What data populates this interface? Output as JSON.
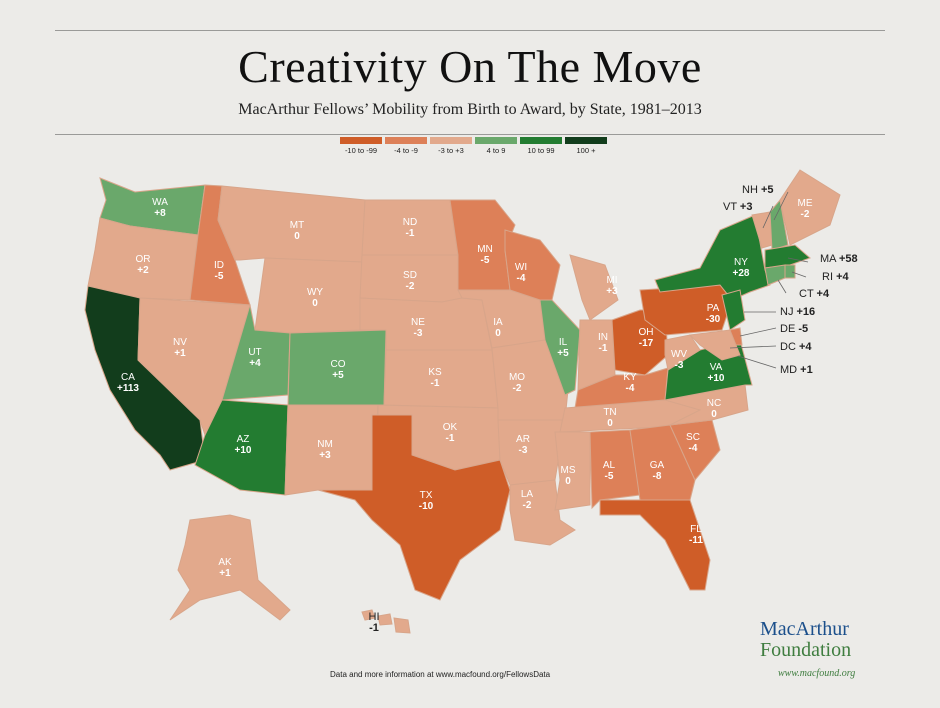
{
  "title": "Creativity On The Move",
  "subtitle": "MacArthur Fellows’ Mobility from Birth to Award, by State, 1981–2013",
  "legend": [
    {
      "label": "-10 to -99",
      "color": "#cf5d28"
    },
    {
      "label": "-4 to -9",
      "color": "#dd8058"
    },
    {
      "label": "-3 to +3",
      "color": "#e2a98c"
    },
    {
      "label": "4 to 9",
      "color": "#6aa86b"
    },
    {
      "label": "10 to 99",
      "color": "#237c31"
    },
    {
      "label": "100 +",
      "color": "#123d1c"
    }
  ],
  "colors": {
    "border": "#d8a58a",
    "background": "#ecebe8"
  },
  "states": [
    {
      "abbr": "WA",
      "value": "+8",
      "bin": 3
    },
    {
      "abbr": "OR",
      "value": "+2",
      "bin": 2
    },
    {
      "abbr": "CA",
      "value": "+113",
      "bin": 5
    },
    {
      "abbr": "ID",
      "value": "-5",
      "bin": 1
    },
    {
      "abbr": "NV",
      "value": "+1",
      "bin": 2
    },
    {
      "abbr": "MT",
      "value": "0",
      "bin": 2
    },
    {
      "abbr": "WY",
      "value": "0",
      "bin": 2
    },
    {
      "abbr": "UT",
      "value": "+4",
      "bin": 3
    },
    {
      "abbr": "AZ",
      "value": "+10",
      "bin": 4
    },
    {
      "abbr": "CO",
      "value": "+5",
      "bin": 3
    },
    {
      "abbr": "NM",
      "value": "+3",
      "bin": 2
    },
    {
      "abbr": "ND",
      "value": "-1",
      "bin": 2
    },
    {
      "abbr": "SD",
      "value": "-2",
      "bin": 2
    },
    {
      "abbr": "NE",
      "value": "-3",
      "bin": 2
    },
    {
      "abbr": "KS",
      "value": "-1",
      "bin": 2
    },
    {
      "abbr": "OK",
      "value": "-1",
      "bin": 2
    },
    {
      "abbr": "TX",
      "value": "-10",
      "bin": 0
    },
    {
      "abbr": "MN",
      "value": "-5",
      "bin": 1
    },
    {
      "abbr": "IA",
      "value": "0",
      "bin": 2
    },
    {
      "abbr": "MO",
      "value": "-2",
      "bin": 2
    },
    {
      "abbr": "AR",
      "value": "-3",
      "bin": 2
    },
    {
      "abbr": "LA",
      "value": "-2",
      "bin": 2
    },
    {
      "abbr": "WI",
      "value": "-4",
      "bin": 1
    },
    {
      "abbr": "IL",
      "value": "+5",
      "bin": 3
    },
    {
      "abbr": "MI",
      "value": "+3",
      "bin": 2
    },
    {
      "abbr": "IN",
      "value": "-1",
      "bin": 2
    },
    {
      "abbr": "OH",
      "value": "-17",
      "bin": 0
    },
    {
      "abbr": "KY",
      "value": "-4",
      "bin": 1
    },
    {
      "abbr": "TN",
      "value": "0",
      "bin": 2
    },
    {
      "abbr": "MS",
      "value": "0",
      "bin": 2
    },
    {
      "abbr": "AL",
      "value": "-5",
      "bin": 1
    },
    {
      "abbr": "GA",
      "value": "-8",
      "bin": 1
    },
    {
      "abbr": "FL",
      "value": "-11",
      "bin": 0
    },
    {
      "abbr": "SC",
      "value": "-4",
      "bin": 1
    },
    {
      "abbr": "NC",
      "value": "0",
      "bin": 2
    },
    {
      "abbr": "VA",
      "value": "+10",
      "bin": 4
    },
    {
      "abbr": "WV",
      "value": "-3",
      "bin": 2
    },
    {
      "abbr": "PA",
      "value": "-30",
      "bin": 0
    },
    {
      "abbr": "NY",
      "value": "+28",
      "bin": 4
    },
    {
      "abbr": "AK",
      "value": "+1",
      "bin": 2
    },
    {
      "abbr": "HI",
      "value": "-1",
      "bin": 2
    },
    {
      "abbr": "ME",
      "value": "-2",
      "bin": 2
    },
    {
      "abbr": "NH",
      "value": "+5",
      "bin": 3
    },
    {
      "abbr": "VT",
      "value": "+3",
      "bin": 2
    },
    {
      "abbr": "MA",
      "value": "+58",
      "bin": 4
    },
    {
      "abbr": "RI",
      "value": "+4",
      "bin": 3
    },
    {
      "abbr": "CT",
      "value": "+4",
      "bin": 3
    },
    {
      "abbr": "NJ",
      "value": "+16",
      "bin": 4
    },
    {
      "abbr": "DE",
      "value": "-5",
      "bin": 1
    },
    {
      "abbr": "DC",
      "value": "+4",
      "bin": 3
    },
    {
      "abbr": "MD",
      "value": "+1",
      "bin": 2
    }
  ],
  "footer": "Data and more information at www.macfound.org/FellowsData",
  "brand": {
    "line1": "MacArthur",
    "line2": "Foundation",
    "url": "www.macfound.org"
  }
}
